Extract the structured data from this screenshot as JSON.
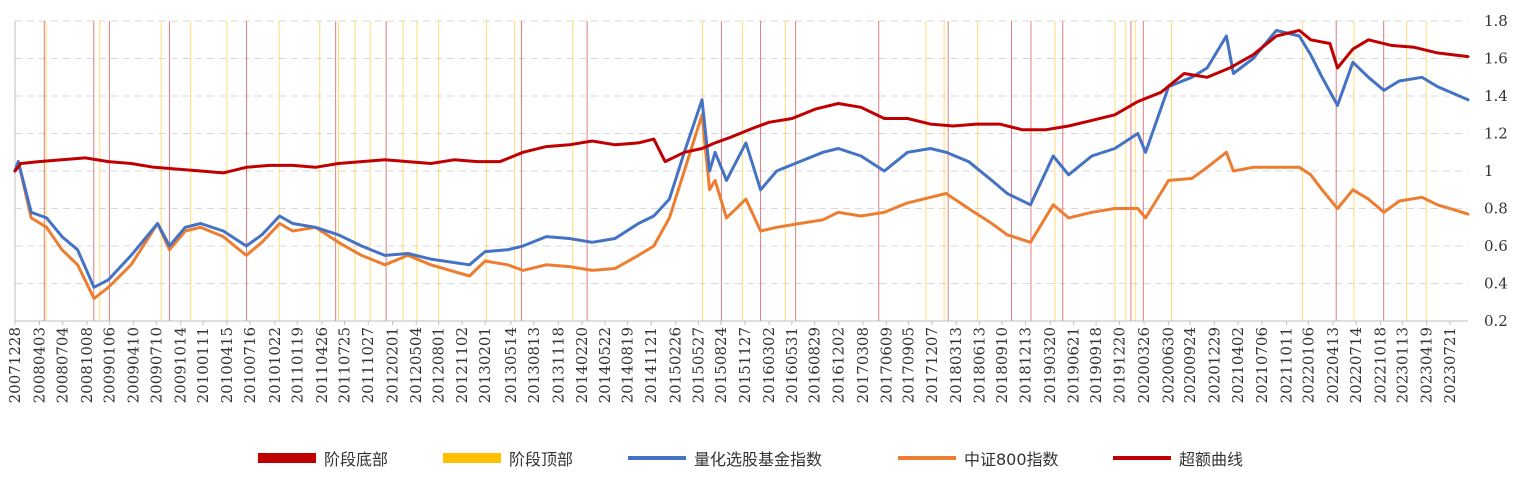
{
  "chart_data": {
    "type": "line",
    "title": "",
    "xlabel": "",
    "ylabel": "",
    "ylim": [
      0.2,
      1.8
    ],
    "yticks": [
      "0.2",
      "0.4",
      "0.6",
      "0.8",
      "1",
      "1.2",
      "1.4",
      "1.6",
      "1.8"
    ],
    "y_grid": true,
    "legend_position": "bottom",
    "x_range": [
      "2007-12-28",
      "2023-09-30"
    ],
    "x_tick_labels": [
      "20071228",
      "20080403",
      "20080704",
      "20081008",
      "20090106",
      "20090410",
      "20090710",
      "20091014",
      "20100111",
      "20100415",
      "20100716",
      "20101022",
      "20110119",
      "20110426",
      "20110725",
      "20111027",
      "20120201",
      "20120504",
      "20120801",
      "20121102",
      "20130201",
      "20130514",
      "20130813",
      "20131118",
      "20140220",
      "20140522",
      "20140819",
      "20141121",
      "20150226",
      "20150527",
      "20150824",
      "20151127",
      "20160302",
      "20160531",
      "20160829",
      "20161202",
      "20170308",
      "20170609",
      "20170905",
      "20171207",
      "20180313",
      "20180613",
      "20180910",
      "20181213",
      "20190320",
      "20190621",
      "20190918",
      "20191220",
      "20200326",
      "20200630",
      "20200924",
      "20201229",
      "20210402",
      "20210706",
      "20211011",
      "20220106",
      "20220413",
      "20220714",
      "20221018",
      "20230113",
      "20230419",
      "20230721"
    ],
    "series": [
      {
        "name": "超额曲线",
        "type": "line",
        "color": "#C00000",
        "points": [
          [
            "2007-12-28",
            1.0
          ],
          [
            "2008-01-20",
            1.04
          ],
          [
            "2008-04-01",
            1.05
          ],
          [
            "2008-07-01",
            1.06
          ],
          [
            "2008-10-01",
            1.07
          ],
          [
            "2009-01-01",
            1.05
          ],
          [
            "2009-04-01",
            1.04
          ],
          [
            "2009-07-01",
            1.02
          ],
          [
            "2009-10-01",
            1.01
          ],
          [
            "2010-01-01",
            1.0
          ],
          [
            "2010-04-01",
            0.99
          ],
          [
            "2010-07-01",
            1.02
          ],
          [
            "2010-10-01",
            1.03
          ],
          [
            "2011-01-01",
            1.03
          ],
          [
            "2011-04-01",
            1.02
          ],
          [
            "2011-07-01",
            1.04
          ],
          [
            "2011-10-01",
            1.05
          ],
          [
            "2012-01-01",
            1.06
          ],
          [
            "2012-04-01",
            1.05
          ],
          [
            "2012-07-01",
            1.04
          ],
          [
            "2012-10-01",
            1.06
          ],
          [
            "2013-01-01",
            1.05
          ],
          [
            "2013-04-01",
            1.05
          ],
          [
            "2013-07-01",
            1.1
          ],
          [
            "2013-10-01",
            1.13
          ],
          [
            "2014-01-01",
            1.14
          ],
          [
            "2014-04-01",
            1.16
          ],
          [
            "2014-07-01",
            1.14
          ],
          [
            "2014-10-01",
            1.15
          ],
          [
            "2014-12-01",
            1.17
          ],
          [
            "2015-01-15",
            1.05
          ],
          [
            "2015-04-01",
            1.1
          ],
          [
            "2015-06-10",
            1.12
          ],
          [
            "2015-08-01",
            1.15
          ],
          [
            "2015-10-01",
            1.18
          ],
          [
            "2016-01-01",
            1.23
          ],
          [
            "2016-03-01",
            1.26
          ],
          [
            "2016-06-01",
            1.28
          ],
          [
            "2016-09-01",
            1.33
          ],
          [
            "2016-12-01",
            1.36
          ],
          [
            "2017-03-01",
            1.34
          ],
          [
            "2017-06-01",
            1.28
          ],
          [
            "2017-09-01",
            1.28
          ],
          [
            "2017-12-01",
            1.25
          ],
          [
            "2018-03-01",
            1.24
          ],
          [
            "2018-06-01",
            1.25
          ],
          [
            "2018-09-01",
            1.25
          ],
          [
            "2018-12-01",
            1.22
          ],
          [
            "2019-03-01",
            1.22
          ],
          [
            "2019-06-01",
            1.24
          ],
          [
            "2019-09-01",
            1.27
          ],
          [
            "2019-12-01",
            1.3
          ],
          [
            "2020-03-01",
            1.37
          ],
          [
            "2020-06-01",
            1.42
          ],
          [
            "2020-09-01",
            1.52
          ],
          [
            "2020-12-01",
            1.5
          ],
          [
            "2021-03-01",
            1.55
          ],
          [
            "2021-06-01",
            1.62
          ],
          [
            "2021-09-01",
            1.72
          ],
          [
            "2021-12-01",
            1.75
          ],
          [
            "2022-01-15",
            1.7
          ],
          [
            "2022-04-01",
            1.68
          ],
          [
            "2022-05-01",
            1.55
          ],
          [
            "2022-07-01",
            1.65
          ],
          [
            "2022-09-01",
            1.7
          ],
          [
            "2022-12-01",
            1.67
          ],
          [
            "2023-03-01",
            1.66
          ],
          [
            "2023-06-01",
            1.63
          ],
          [
            "2023-09-30",
            1.61
          ]
        ]
      },
      {
        "name": "量化选股基金指数",
        "type": "line",
        "color": "#4472C4",
        "points": [
          [
            "2007-12-28",
            1.0
          ],
          [
            "2008-01-10",
            1.05
          ],
          [
            "2008-03-01",
            0.78
          ],
          [
            "2008-05-01",
            0.75
          ],
          [
            "2008-07-01",
            0.65
          ],
          [
            "2008-09-01",
            0.58
          ],
          [
            "2008-11-05",
            0.38
          ],
          [
            "2009-01-01",
            0.42
          ],
          [
            "2009-04-01",
            0.55
          ],
          [
            "2009-07-15",
            0.72
          ],
          [
            "2009-08-31",
            0.6
          ],
          [
            "2009-11-01",
            0.7
          ],
          [
            "2010-01-01",
            0.72
          ],
          [
            "2010-04-01",
            0.68
          ],
          [
            "2010-07-01",
            0.6
          ],
          [
            "2010-09-01",
            0.66
          ],
          [
            "2010-11-10",
            0.76
          ],
          [
            "2011-01-01",
            0.72
          ],
          [
            "2011-04-01",
            0.7
          ],
          [
            "2011-07-01",
            0.66
          ],
          [
            "2011-10-01",
            0.6
          ],
          [
            "2012-01-01",
            0.55
          ],
          [
            "2012-04-01",
            0.56
          ],
          [
            "2012-07-01",
            0.53
          ],
          [
            "2012-12-01",
            0.5
          ],
          [
            "2013-02-01",
            0.57
          ],
          [
            "2013-05-01",
            0.58
          ],
          [
            "2013-07-01",
            0.6
          ],
          [
            "2013-10-01",
            0.65
          ],
          [
            "2014-01-01",
            0.64
          ],
          [
            "2014-04-01",
            0.62
          ],
          [
            "2014-07-01",
            0.64
          ],
          [
            "2014-10-01",
            0.72
          ],
          [
            "2014-12-01",
            0.76
          ],
          [
            "2015-02-01",
            0.85
          ],
          [
            "2015-04-01",
            1.1
          ],
          [
            "2015-06-10",
            1.38
          ],
          [
            "2015-07-10",
            1.0
          ],
          [
            "2015-08-01",
            1.1
          ],
          [
            "2015-09-15",
            0.95
          ],
          [
            "2015-12-01",
            1.15
          ],
          [
            "2016-01-28",
            0.9
          ],
          [
            "2016-04-01",
            1.0
          ],
          [
            "2016-07-01",
            1.05
          ],
          [
            "2016-10-01",
            1.1
          ],
          [
            "2016-12-01",
            1.12
          ],
          [
            "2017-03-01",
            1.08
          ],
          [
            "2017-06-01",
            1.0
          ],
          [
            "2017-09-01",
            1.1
          ],
          [
            "2017-12-01",
            1.12
          ],
          [
            "2018-02-01",
            1.1
          ],
          [
            "2018-05-01",
            1.05
          ],
          [
            "2018-08-01",
            0.95
          ],
          [
            "2018-10-01",
            0.88
          ],
          [
            "2019-01-01",
            0.82
          ],
          [
            "2019-04-01",
            1.08
          ],
          [
            "2019-06-01",
            0.98
          ],
          [
            "2019-09-01",
            1.08
          ],
          [
            "2019-12-01",
            1.12
          ],
          [
            "2020-03-01",
            1.2
          ],
          [
            "2020-04-01",
            1.1
          ],
          [
            "2020-07-01",
            1.45
          ],
          [
            "2020-10-01",
            1.5
          ],
          [
            "2020-12-01",
            1.55
          ],
          [
            "2021-02-15",
            1.72
          ],
          [
            "2021-03-15",
            1.52
          ],
          [
            "2021-06-01",
            1.6
          ],
          [
            "2021-09-01",
            1.75
          ],
          [
            "2021-12-01",
            1.72
          ],
          [
            "2022-01-15",
            1.62
          ],
          [
            "2022-03-01",
            1.5
          ],
          [
            "2022-05-01",
            1.35
          ],
          [
            "2022-07-01",
            1.58
          ],
          [
            "2022-09-01",
            1.5
          ],
          [
            "2022-11-01",
            1.43
          ],
          [
            "2023-01-01",
            1.48
          ],
          [
            "2023-04-01",
            1.5
          ],
          [
            "2023-06-01",
            1.45
          ],
          [
            "2023-09-30",
            1.38
          ]
        ]
      },
      {
        "name": "中证800指数",
        "type": "line",
        "color": "#ED7D31",
        "points": [
          [
            "2007-12-28",
            1.0
          ],
          [
            "2008-01-10",
            1.05
          ],
          [
            "2008-03-01",
            0.75
          ],
          [
            "2008-05-01",
            0.7
          ],
          [
            "2008-07-01",
            0.58
          ],
          [
            "2008-09-01",
            0.5
          ],
          [
            "2008-11-05",
            0.32
          ],
          [
            "2009-01-01",
            0.38
          ],
          [
            "2009-04-01",
            0.5
          ],
          [
            "2009-07-15",
            0.72
          ],
          [
            "2009-08-31",
            0.58
          ],
          [
            "2009-11-01",
            0.68
          ],
          [
            "2010-01-01",
            0.7
          ],
          [
            "2010-04-01",
            0.65
          ],
          [
            "2010-07-01",
            0.55
          ],
          [
            "2010-09-01",
            0.62
          ],
          [
            "2010-11-10",
            0.72
          ],
          [
            "2011-01-01",
            0.68
          ],
          [
            "2011-04-01",
            0.7
          ],
          [
            "2011-07-01",
            0.62
          ],
          [
            "2011-10-01",
            0.55
          ],
          [
            "2012-01-01",
            0.5
          ],
          [
            "2012-04-01",
            0.55
          ],
          [
            "2012-07-01",
            0.5
          ],
          [
            "2012-12-01",
            0.44
          ],
          [
            "2013-02-01",
            0.52
          ],
          [
            "2013-05-01",
            0.5
          ],
          [
            "2013-07-01",
            0.47
          ],
          [
            "2013-10-01",
            0.5
          ],
          [
            "2014-01-01",
            0.49
          ],
          [
            "2014-04-01",
            0.47
          ],
          [
            "2014-07-01",
            0.48
          ],
          [
            "2014-10-01",
            0.55
          ],
          [
            "2014-12-01",
            0.6
          ],
          [
            "2015-02-01",
            0.75
          ],
          [
            "2015-04-01",
            1.0
          ],
          [
            "2015-06-10",
            1.3
          ],
          [
            "2015-07-10",
            0.9
          ],
          [
            "2015-08-01",
            0.95
          ],
          [
            "2015-09-15",
            0.75
          ],
          [
            "2015-12-01",
            0.85
          ],
          [
            "2016-01-28",
            0.68
          ],
          [
            "2016-04-01",
            0.7
          ],
          [
            "2016-07-01",
            0.72
          ],
          [
            "2016-10-01",
            0.74
          ],
          [
            "2016-12-01",
            0.78
          ],
          [
            "2017-03-01",
            0.76
          ],
          [
            "2017-06-01",
            0.78
          ],
          [
            "2017-09-01",
            0.83
          ],
          [
            "2017-12-01",
            0.86
          ],
          [
            "2018-02-01",
            0.88
          ],
          [
            "2018-05-01",
            0.8
          ],
          [
            "2018-08-01",
            0.72
          ],
          [
            "2018-10-01",
            0.66
          ],
          [
            "2019-01-01",
            0.62
          ],
          [
            "2019-04-01",
            0.82
          ],
          [
            "2019-06-01",
            0.75
          ],
          [
            "2019-09-01",
            0.78
          ],
          [
            "2019-12-01",
            0.8
          ],
          [
            "2020-03-01",
            0.8
          ],
          [
            "2020-04-01",
            0.75
          ],
          [
            "2020-07-01",
            0.95
          ],
          [
            "2020-10-01",
            0.96
          ],
          [
            "2020-12-01",
            1.02
          ],
          [
            "2021-02-15",
            1.1
          ],
          [
            "2021-03-15",
            1.0
          ],
          [
            "2021-06-01",
            1.02
          ],
          [
            "2021-09-01",
            1.02
          ],
          [
            "2021-12-01",
            1.02
          ],
          [
            "2022-01-15",
            0.98
          ],
          [
            "2022-03-01",
            0.9
          ],
          [
            "2022-05-01",
            0.8
          ],
          [
            "2022-07-01",
            0.9
          ],
          [
            "2022-09-01",
            0.85
          ],
          [
            "2022-11-01",
            0.78
          ],
          [
            "2023-01-01",
            0.84
          ],
          [
            "2023-04-01",
            0.86
          ],
          [
            "2023-06-01",
            0.82
          ],
          [
            "2023-09-30",
            0.77
          ]
        ]
      }
    ],
    "stage_bottoms": {
      "name": "阶段底部",
      "color": "#C00000",
      "dates": [
        "2008-04-22",
        "2008-11-04",
        "2009-01-05",
        "2009-08-31",
        "2010-07-02",
        "2011-06-20",
        "2012-01-06",
        "2013-06-25",
        "2014-03-12",
        "2015-08-26",
        "2016-01-28",
        "2016-06-15",
        "2017-05-10",
        "2018-02-09",
        "2018-10-18",
        "2019-01-03",
        "2019-05-09",
        "2020-02-03",
        "2020-03-23",
        "2022-04-26",
        "2022-10-31"
      ]
    },
    "stage_tops": {
      "name": "阶段顶部",
      "color": "#FFC000",
      "dates": [
        "2008-04-29",
        "2008-11-28",
        "2009-07-29",
        "2009-11-23",
        "2010-04-15",
        "2010-11-08",
        "2011-04-18",
        "2011-07-01",
        "2011-09-05",
        "2011-11-04",
        "2012-03-13",
        "2012-05-07",
        "2012-08-01",
        "2013-02-06",
        "2013-05-29",
        "2014-01-14",
        "2015-06-12",
        "2015-11-17",
        "2016-05-05",
        "2017-11-13",
        "2018-01-24",
        "2018-06-06",
        "2019-04-08",
        "2019-12-02",
        "2020-01-14",
        "2020-02-20",
        "2020-07-13",
        "2021-12-13",
        "2022-07-05",
        "2023-01-30",
        "2023-04-18"
      ]
    }
  }
}
